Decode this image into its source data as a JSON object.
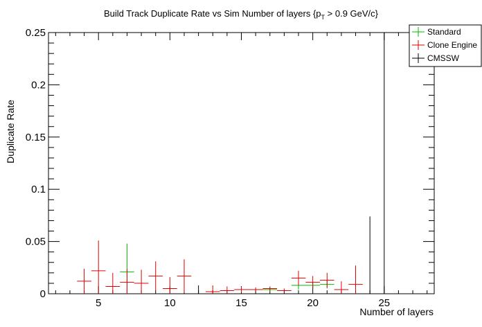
{
  "chart_data": {
    "type": "scatter",
    "title_main": "Build Track Duplicate Rate vs Sim Number of layers {p",
    "title_sub": "T",
    "title_tail": " > 0.9 GeV/c}",
    "xlabel": "Number of layers",
    "ylabel": "Duplicate Rate",
    "xlim": [
      1.5,
      28.5
    ],
    "ylim": [
      0,
      0.25
    ],
    "x_ticks": [
      5,
      10,
      15,
      20,
      25
    ],
    "x_tick_labels": [
      "5",
      "10",
      "15",
      "20",
      "25"
    ],
    "y_ticks": [
      0,
      0.05,
      0.1,
      0.15,
      0.2,
      0.25
    ],
    "y_tick_labels": [
      "0",
      "0.05",
      "0.1",
      "0.15",
      "0.2",
      "0.25"
    ],
    "grid": false,
    "legend_position": "top-right",
    "series": [
      {
        "name": "Standard",
        "color": "#00bb00",
        "points": [
          {
            "x": 7,
            "y": 0.021,
            "err": 0.027
          },
          {
            "x": 17,
            "y": 0.004,
            "err": 0.002
          },
          {
            "x": 19,
            "y": 0.008,
            "err": 0.004
          },
          {
            "x": 20,
            "y": 0.008,
            "err": 0.003
          },
          {
            "x": 21,
            "y": 0.009,
            "err": 0.004
          }
        ]
      },
      {
        "name": "Clone Engine",
        "color": "#dd0000",
        "points": [
          {
            "x": 4,
            "y": 0.012,
            "err": 0.012
          },
          {
            "x": 5,
            "y": 0.022,
            "err": 0.029
          },
          {
            "x": 6,
            "y": 0.007,
            "err": 0.013
          },
          {
            "x": 7,
            "y": 0.011,
            "err": 0.013
          },
          {
            "x": 8,
            "y": 0.01,
            "err": 0.013
          },
          {
            "x": 9,
            "y": 0.017,
            "err": 0.014
          },
          {
            "x": 10,
            "y": 0.005,
            "err": 0.011
          },
          {
            "x": 11,
            "y": 0.017,
            "err": 0.016
          },
          {
            "x": 13,
            "y": 0.002,
            "err": 0.006
          },
          {
            "x": 14,
            "y": 0.003,
            "err": 0.004
          },
          {
            "x": 15,
            "y": 0.004,
            "err": 0.003
          },
          {
            "x": 16,
            "y": 0.004,
            "err": 0.002
          },
          {
            "x": 17,
            "y": 0.005,
            "err": 0.002
          },
          {
            "x": 18,
            "y": 0.003,
            "err": 0.002
          },
          {
            "x": 19,
            "y": 0.015,
            "err": 0.007
          },
          {
            "x": 20,
            "y": 0.011,
            "err": 0.006
          },
          {
            "x": 21,
            "y": 0.013,
            "err": 0.007
          },
          {
            "x": 22,
            "y": 0.004,
            "err": 0.008
          },
          {
            "x": 23,
            "y": 0.009,
            "err": 0.018
          }
        ]
      },
      {
        "name": "CMSSW",
        "color": "#000000",
        "points": [
          {
            "x": 12,
            "y": 0.0,
            "err": 0.008
          },
          {
            "x": 24,
            "y": 0.0,
            "err": 0.074
          },
          {
            "x": 25,
            "y": 0.0,
            "err": 0.25
          }
        ]
      }
    ]
  }
}
